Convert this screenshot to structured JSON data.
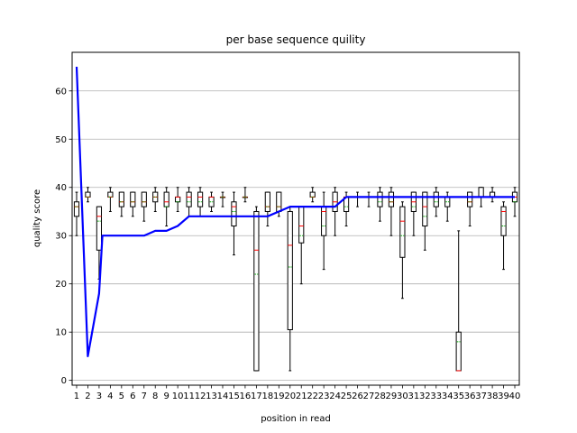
{
  "chart_data": {
    "type": "box",
    "title": "per base sequence quility",
    "xlabel": "position in read",
    "ylabel": "quality score",
    "ylim": [
      -1,
      68
    ],
    "yticks": [
      0,
      10,
      20,
      30,
      40,
      50,
      60
    ],
    "grid": "y",
    "colors": {
      "box": "#000000",
      "median": "#ff0000",
      "mean": "#00aa00",
      "line": "#0000ff",
      "grid": "#b0b0b0"
    },
    "positions": [
      1,
      2,
      3,
      4,
      5,
      6,
      7,
      8,
      9,
      10,
      11,
      12,
      13,
      14,
      15,
      16,
      17,
      18,
      19,
      20,
      21,
      22,
      23,
      24,
      25,
      26,
      27,
      28,
      29,
      30,
      31,
      32,
      33,
      34,
      35,
      36,
      37,
      38,
      39,
      40
    ],
    "boxes": [
      {
        "whislo": 30,
        "q1": 34,
        "med": 36,
        "mean": 36,
        "q3": 37,
        "whishi": 39
      },
      {
        "whislo": 37,
        "q1": 38,
        "med": 38,
        "mean": 38,
        "q3": 39,
        "whishi": 40
      },
      {
        "whislo": 21,
        "q1": 27,
        "med": 34,
        "mean": 33,
        "q3": 36,
        "whishi": 36
      },
      {
        "whislo": 35,
        "q1": 38,
        "med": 38,
        "mean": 38,
        "q3": 39,
        "whishi": 40
      },
      {
        "whislo": 34,
        "q1": 36,
        "med": 37,
        "mean": 37,
        "q3": 39,
        "whishi": 39
      },
      {
        "whislo": 34,
        "q1": 36,
        "med": 37,
        "mean": 37,
        "q3": 39,
        "whishi": 39
      },
      {
        "whislo": 33,
        "q1": 36,
        "med": 37,
        "mean": 37,
        "q3": 39,
        "whishi": 39
      },
      {
        "whislo": 35,
        "q1": 37,
        "med": 38,
        "mean": 38,
        "q3": 39,
        "whishi": 40
      },
      {
        "whislo": 32,
        "q1": 36,
        "med": 37,
        "mean": 36,
        "q3": 39,
        "whishi": 40
      },
      {
        "whislo": 35,
        "q1": 37,
        "med": 38,
        "mean": 37,
        "q3": 38,
        "whishi": 40
      },
      {
        "whislo": 34,
        "q1": 36,
        "med": 38,
        "mean": 37,
        "q3": 39,
        "whishi": 40
      },
      {
        "whislo": 34,
        "q1": 36,
        "med": 38,
        "mean": 37,
        "q3": 39,
        "whishi": 40
      },
      {
        "whislo": 35,
        "q1": 36,
        "med": 38,
        "mean": 37,
        "q3": 38,
        "whishi": 39
      },
      {
        "whislo": 36,
        "q1": 38,
        "med": 38,
        "mean": 38,
        "q3": 38,
        "whishi": 39
      },
      {
        "whislo": 26,
        "q1": 32,
        "med": 36,
        "mean": 35,
        "q3": 37,
        "whishi": 39
      },
      {
        "whislo": 37,
        "q1": 38,
        "med": 38,
        "mean": 38,
        "q3": 38,
        "whishi": 40
      },
      {
        "whislo": 2,
        "q1": 2,
        "med": 27,
        "mean": 22,
        "q3": 35,
        "whishi": 36
      },
      {
        "whislo": 32,
        "q1": 35,
        "med": 36,
        "mean": 36,
        "q3": 39,
        "whishi": 39
      },
      {
        "whislo": 34,
        "q1": 35,
        "med": 36,
        "mean": 36,
        "q3": 39,
        "whishi": 39
      },
      {
        "whislo": 2,
        "q1": 10.5,
        "med": 28,
        "mean": 23.5,
        "q3": 35,
        "whishi": 36
      },
      {
        "whislo": 20,
        "q1": 28.5,
        "med": 32,
        "mean": 30,
        "q3": 36,
        "whishi": 36
      },
      {
        "whislo": 37,
        "q1": 38,
        "med": 38,
        "mean": 38,
        "q3": 39,
        "whishi": 40
      },
      {
        "whislo": 23,
        "q1": 30,
        "med": 35,
        "mean": 32,
        "q3": 36,
        "whishi": 39
      },
      {
        "whislo": 30,
        "q1": 35,
        "med": 37,
        "mean": 36,
        "q3": 39,
        "whishi": 40
      },
      {
        "whislo": 32,
        "q1": 35,
        "med": 38,
        "mean": 36,
        "q3": 38,
        "whishi": 39
      },
      {
        "whislo": 36,
        "q1": 38,
        "med": 38,
        "mean": 38,
        "q3": 38,
        "whishi": 39
      },
      {
        "whislo": 36,
        "q1": 38,
        "med": 38,
        "mean": 38,
        "q3": 38,
        "whishi": 39
      },
      {
        "whislo": 33,
        "q1": 36,
        "med": 38,
        "mean": 37,
        "q3": 39,
        "whishi": 40
      },
      {
        "whislo": 30,
        "q1": 36,
        "med": 37,
        "mean": 37,
        "q3": 39,
        "whishi": 40
      },
      {
        "whislo": 17,
        "q1": 25.5,
        "med": 33,
        "mean": 30,
        "q3": 36,
        "whishi": 37
      },
      {
        "whislo": 30,
        "q1": 35,
        "med": 37,
        "mean": 36,
        "q3": 39,
        "whishi": 39
      },
      {
        "whislo": 27,
        "q1": 32,
        "med": 36,
        "mean": 34,
        "q3": 39,
        "whishi": 39
      },
      {
        "whislo": 34,
        "q1": 36,
        "med": 38,
        "mean": 37,
        "q3": 39,
        "whishi": 40
      },
      {
        "whislo": 33,
        "q1": 36,
        "med": 38,
        "mean": 37,
        "q3": 38,
        "whishi": 39
      },
      {
        "whislo": 2,
        "q1": 2,
        "med": 2,
        "mean": 8,
        "q3": 10,
        "whishi": 31
      },
      {
        "whislo": 32,
        "q1": 36,
        "med": 37,
        "mean": 37,
        "q3": 39,
        "whishi": 39
      },
      {
        "whislo": 36,
        "q1": 38,
        "med": 38,
        "mean": 38,
        "q3": 40,
        "whishi": 40
      },
      {
        "whislo": 37,
        "q1": 38,
        "med": 38,
        "mean": 38,
        "q3": 39,
        "whishi": 40
      },
      {
        "whislo": 23,
        "q1": 30,
        "med": 35,
        "mean": 32,
        "q3": 36,
        "whishi": 37
      },
      {
        "whislo": 34,
        "q1": 37,
        "med": 38,
        "mean": 37,
        "q3": 39,
        "whishi": 40
      }
    ],
    "line": {
      "x": [
        1,
        2,
        3,
        3.3,
        3.7,
        4,
        5,
        6,
        7,
        8,
        9,
        10,
        11,
        12,
        13,
        14,
        15,
        16,
        17,
        18,
        19,
        20,
        21,
        22,
        23,
        24,
        25,
        26,
        27,
        28,
        29,
        30,
        31,
        32,
        33,
        34,
        35,
        36,
        37,
        38,
        39,
        40
      ],
      "y": [
        65,
        5,
        18,
        30,
        30,
        30,
        30,
        30,
        30,
        31,
        31,
        32,
        34,
        34,
        34,
        34,
        34,
        34,
        34,
        34,
        35,
        36,
        36,
        36,
        36,
        36,
        38,
        38,
        38,
        38,
        38,
        38,
        38,
        38,
        38,
        38,
        38,
        38,
        38,
        38,
        38,
        38
      ]
    }
  }
}
